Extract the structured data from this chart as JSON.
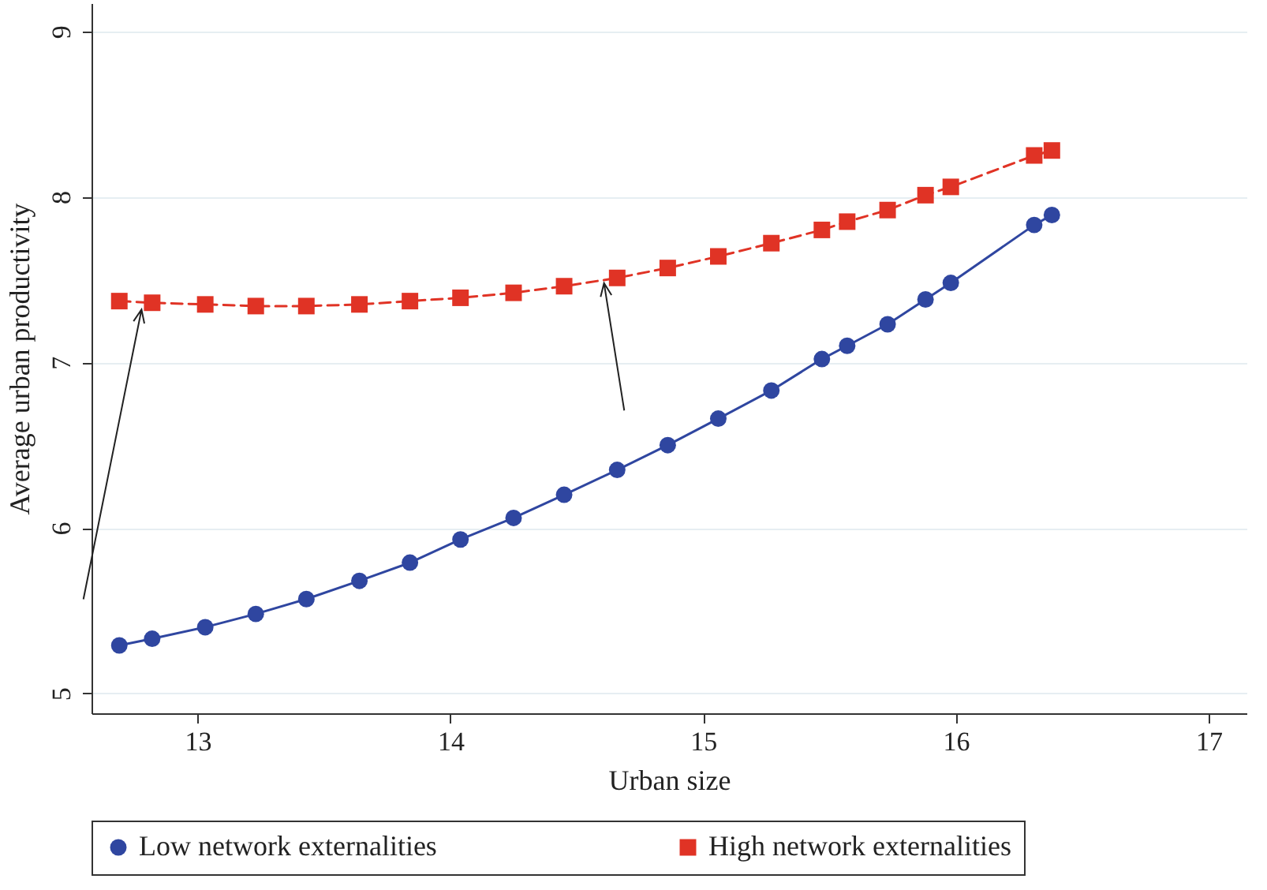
{
  "chart_data": {
    "type": "line",
    "xlabel": "Urban size",
    "ylabel": "Average urban productivity",
    "xlim": [
      12.58,
      17.15
    ],
    "xticks": [
      13,
      14,
      15,
      16,
      17
    ],
    "ylim": [
      4.88,
      9.17
    ],
    "yticks": [
      5,
      6,
      7,
      8,
      9
    ],
    "grid": "y",
    "legend": "bottom",
    "series": [
      {
        "name": "Low network externalities",
        "color": "#2f46a0",
        "marker": "circle",
        "line_style": "solid",
        "x": [
          12.69,
          12.82,
          13.03,
          13.23,
          13.43,
          13.64,
          13.84,
          14.04,
          14.25,
          14.45,
          14.66,
          14.86,
          15.06,
          15.27,
          15.47,
          15.57,
          15.73,
          15.88,
          15.98,
          16.31,
          16.38
        ],
        "values": [
          5.29,
          5.33,
          5.4,
          5.48,
          5.57,
          5.68,
          5.79,
          5.93,
          6.06,
          6.2,
          6.35,
          6.5,
          6.66,
          6.83,
          7.02,
          7.1,
          7.23,
          7.38,
          7.48,
          7.83,
          7.89
        ]
      },
      {
        "name": "High network externalities",
        "color": "#e03325",
        "marker": "square",
        "line_style": "dashed",
        "x": [
          12.69,
          12.82,
          13.03,
          13.23,
          13.43,
          13.64,
          13.84,
          14.04,
          14.25,
          14.45,
          14.66,
          14.86,
          15.06,
          15.27,
          15.47,
          15.57,
          15.73,
          15.88,
          15.98,
          16.31,
          16.38
        ],
        "values": [
          7.37,
          7.36,
          7.35,
          7.34,
          7.34,
          7.35,
          7.37,
          7.39,
          7.42,
          7.46,
          7.51,
          7.57,
          7.64,
          7.72,
          7.8,
          7.85,
          7.92,
          8.01,
          8.06,
          8.25,
          8.28
        ]
      }
    ]
  }
}
